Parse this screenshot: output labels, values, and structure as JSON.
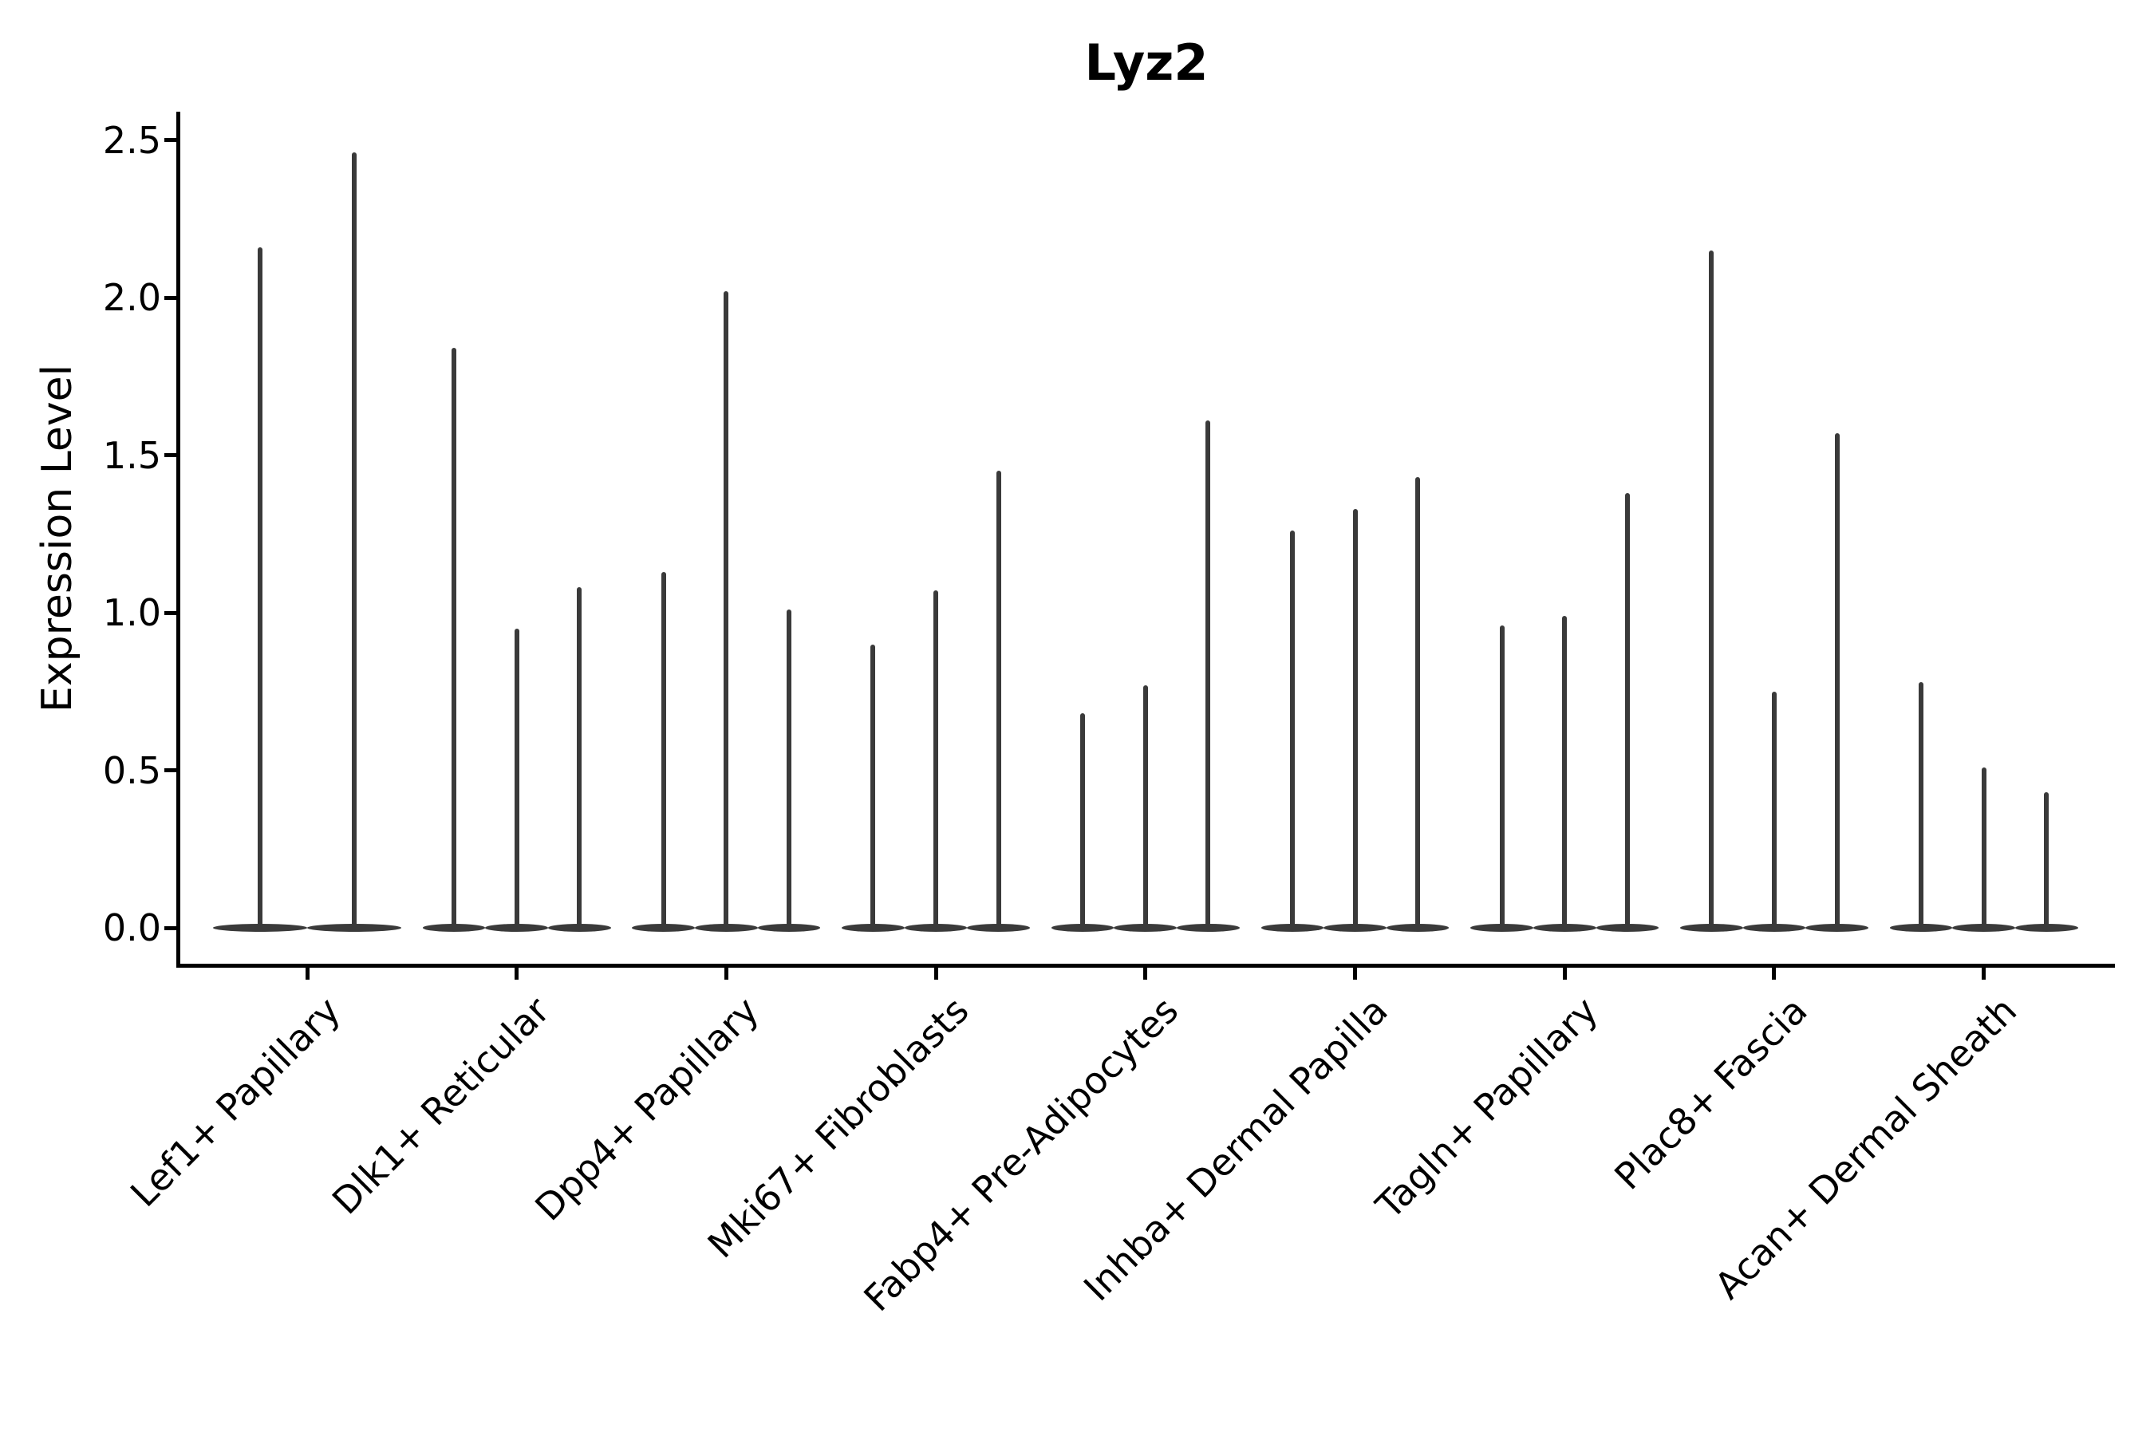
{
  "chart_data": {
    "type": "violin",
    "title": "Lyz2",
    "ylabel": "Expression Level",
    "xlabel": "",
    "ylim": [
      -0.12,
      2.59
    ],
    "yticks": [
      0.0,
      0.5,
      1.0,
      1.5,
      2.0,
      2.5
    ],
    "grid": false,
    "legend": null,
    "x_tick_rotation": 45,
    "violin_color": "#3a3a3a",
    "axis_color": "#000000",
    "background_color": "#ffffff",
    "baseline_value": 0.0,
    "description": "Needle-style violin plot: each cell population contains 2-3 violins whose density mass sits at expression 0 (flat lens at baseline) with a thin spike rising to the maximum expression value.",
    "categories": [
      {
        "label": "Lef1+ Papillary",
        "spike_maxima": [
          2.16,
          2.46
        ]
      },
      {
        "label": "Dlk1+ Reticular",
        "spike_maxima": [
          1.84,
          0.95,
          1.08
        ]
      },
      {
        "label": "Dpp4+ Papillary",
        "spike_maxima": [
          1.13,
          2.02,
          1.01
        ]
      },
      {
        "label": "Mki67+ Fibroblasts",
        "spike_maxima": [
          0.9,
          1.07,
          1.45
        ]
      },
      {
        "label": "Fabp4+ Pre-Adipocytes",
        "spike_maxima": [
          0.68,
          0.77,
          1.61
        ]
      },
      {
        "label": "Inhba+ Dermal Papilla",
        "spike_maxima": [
          1.26,
          1.33,
          1.43
        ]
      },
      {
        "label": "Tagln+ Papillary",
        "spike_maxima": [
          0.96,
          0.99,
          1.38
        ]
      },
      {
        "label": "Plac8+ Fascia",
        "spike_maxima": [
          2.15,
          0.75,
          1.57
        ]
      },
      {
        "label": "Acan+ Dermal Sheath",
        "spike_maxima": [
          0.78,
          0.51,
          0.43
        ]
      }
    ]
  }
}
